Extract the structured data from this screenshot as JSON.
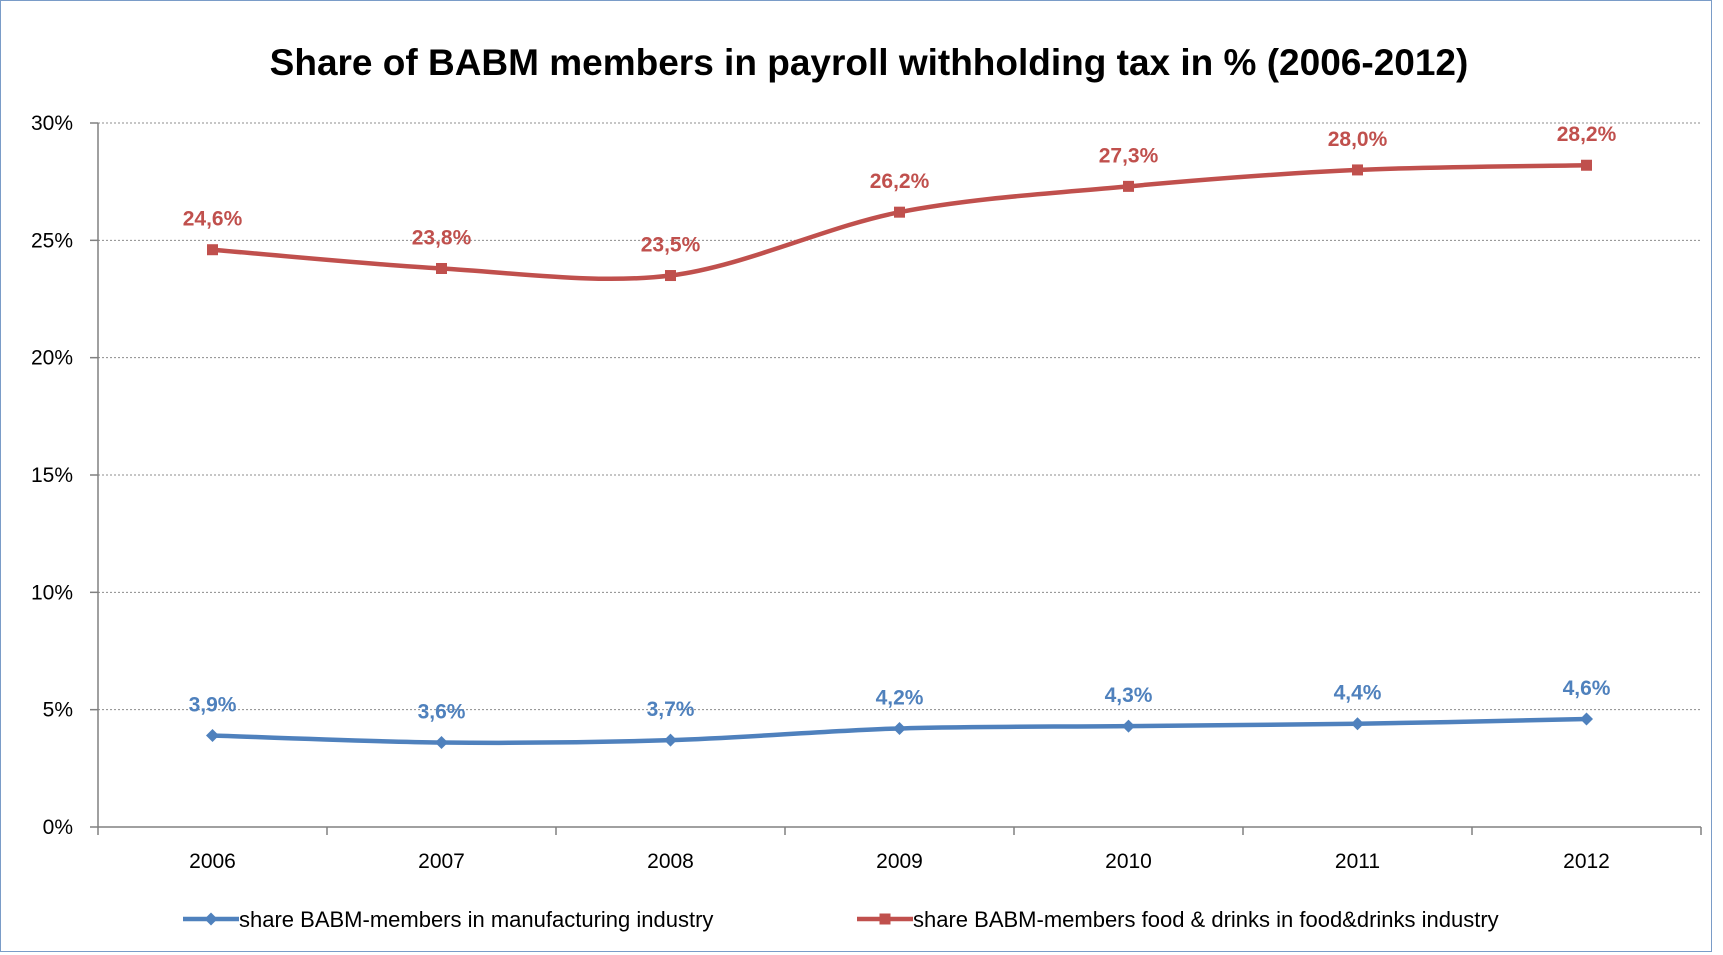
{
  "chart_data": {
    "type": "line",
    "title": "Share of BABM members in payroll withholding tax in % (2006-2012)",
    "categories": [
      "2006",
      "2007",
      "2008",
      "2009",
      "2010",
      "2011",
      "2012"
    ],
    "ylim": [
      0,
      30
    ],
    "yticks": [
      {
        "value": 0,
        "label": "0%"
      },
      {
        "value": 5,
        "label": "5%"
      },
      {
        "value": 10,
        "label": "10%"
      },
      {
        "value": 15,
        "label": "15%"
      },
      {
        "value": 20,
        "label": "20%"
      },
      {
        "value": 25,
        "label": "25%"
      },
      {
        "value": 30,
        "label": "30%"
      }
    ],
    "grid": true,
    "legend_position": "bottom",
    "series": [
      {
        "name": "share BABM-members in manufacturing industry",
        "color": "#4f81bd",
        "marker": "diamond",
        "values": [
          3.9,
          3.6,
          3.7,
          4.2,
          4.3,
          4.4,
          4.6
        ],
        "labels": [
          "3,9%",
          "3,6%",
          "3,7%",
          "4,2%",
          "4,3%",
          "4,4%",
          "4,6%"
        ]
      },
      {
        "name": "share BABM-members food & drinks in food&drinks industry",
        "color": "#c0504d",
        "marker": "square",
        "values": [
          24.6,
          23.8,
          23.5,
          26.2,
          27.3,
          28.0,
          28.2
        ],
        "labels": [
          "24,6%",
          "23,8%",
          "23,5%",
          "26,2%",
          "27,3%",
          "28,0%",
          "28,2%"
        ]
      }
    ]
  }
}
